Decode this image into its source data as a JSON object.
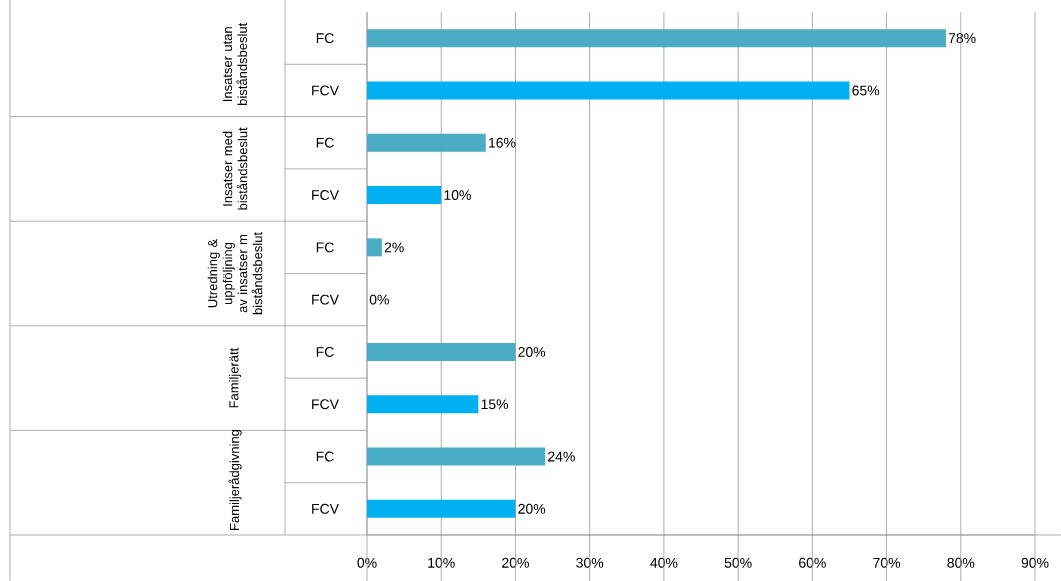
{
  "chart_data": {
    "type": "bar",
    "orientation": "horizontal",
    "categories": [
      "FC",
      "FCV",
      "FC",
      "FCV",
      "FC",
      "FCV",
      "FC",
      "FCV",
      "FC",
      "FCV"
    ],
    "values": [
      78,
      65,
      16,
      10,
      2,
      0,
      20,
      15,
      24,
      20
    ],
    "colors": [
      "#4bacc6",
      "#00b0f0",
      "#4bacc6",
      "#00b0f0",
      "#4bacc6",
      "#00b0f0",
      "#4bacc6",
      "#00b0f0",
      "#4bacc6",
      "#00b0f0"
    ],
    "value_labels": [
      "78%",
      "65%",
      "16%",
      "10%",
      "2%",
      "0%",
      "20%",
      "15%",
      "24%",
      "20%"
    ],
    "xlim": [
      0,
      90
    ],
    "xticks": [
      {
        "value": 0,
        "label": "0%"
      },
      {
        "value": 10,
        "label": "10%"
      },
      {
        "value": 20,
        "label": "20%"
      },
      {
        "value": 30,
        "label": "30%"
      },
      {
        "value": 40,
        "label": "40%"
      },
      {
        "value": 50,
        "label": "50%"
      },
      {
        "value": 60,
        "label": "60%"
      },
      {
        "value": 70,
        "label": "70%"
      },
      {
        "value": 80,
        "label": "80%"
      },
      {
        "value": 90,
        "label": "90%"
      }
    ],
    "grid": "x",
    "annotations": [
      "Insatser utan biståndsbeslut",
      "Insatser med biståndsbeslut",
      "Utredning & uppföljning av insatser m biståndsbeslut",
      "Familjerätt",
      "Familjerådgivning"
    ]
  }
}
